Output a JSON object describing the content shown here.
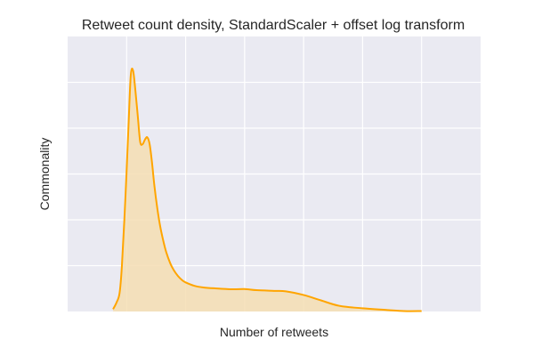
{
  "chart_data": {
    "type": "area",
    "title": "Retweet count density, StandardScaler + offset log transform",
    "xlabel": "Number of retweets",
    "ylabel": "Commonality",
    "xlim": [
      -1.0,
      6.0
    ],
    "ylim": [
      0,
      1.2
    ],
    "xticks": [
      0,
      1,
      2,
      3,
      4,
      5
    ],
    "yticks": [
      0.2,
      0.4,
      0.6,
      0.8,
      1.0
    ],
    "tick_labels_shown": false,
    "grid": true,
    "background": "#EAEAF2",
    "series": [
      {
        "color": "#FFA500",
        "fill_color": "#F5DEB3",
        "x": [
          -0.23,
          -0.17,
          -0.12,
          -0.08,
          -0.02,
          0.03,
          0.07,
          0.11,
          0.15,
          0.19,
          0.23,
          0.27,
          0.31,
          0.35,
          0.39,
          0.43,
          0.47,
          0.52,
          0.57,
          0.62,
          0.67,
          0.74,
          0.8,
          0.87,
          0.94,
          1.0,
          1.15,
          1.3,
          1.5,
          1.8,
          2.0,
          2.2,
          2.5,
          2.7,
          3.0,
          3.3,
          3.6,
          4.0,
          4.4,
          4.7,
          5.0
        ],
        "y": [
          0.01,
          0.04,
          0.08,
          0.2,
          0.5,
          0.8,
          1.03,
          1.05,
          0.96,
          0.85,
          0.74,
          0.73,
          0.75,
          0.76,
          0.73,
          0.65,
          0.55,
          0.45,
          0.37,
          0.31,
          0.26,
          0.21,
          0.18,
          0.155,
          0.137,
          0.127,
          0.112,
          0.105,
          0.101,
          0.097,
          0.098,
          0.093,
          0.09,
          0.088,
          0.072,
          0.048,
          0.025,
          0.014,
          0.007,
          0.002,
          0.002
        ]
      }
    ]
  }
}
